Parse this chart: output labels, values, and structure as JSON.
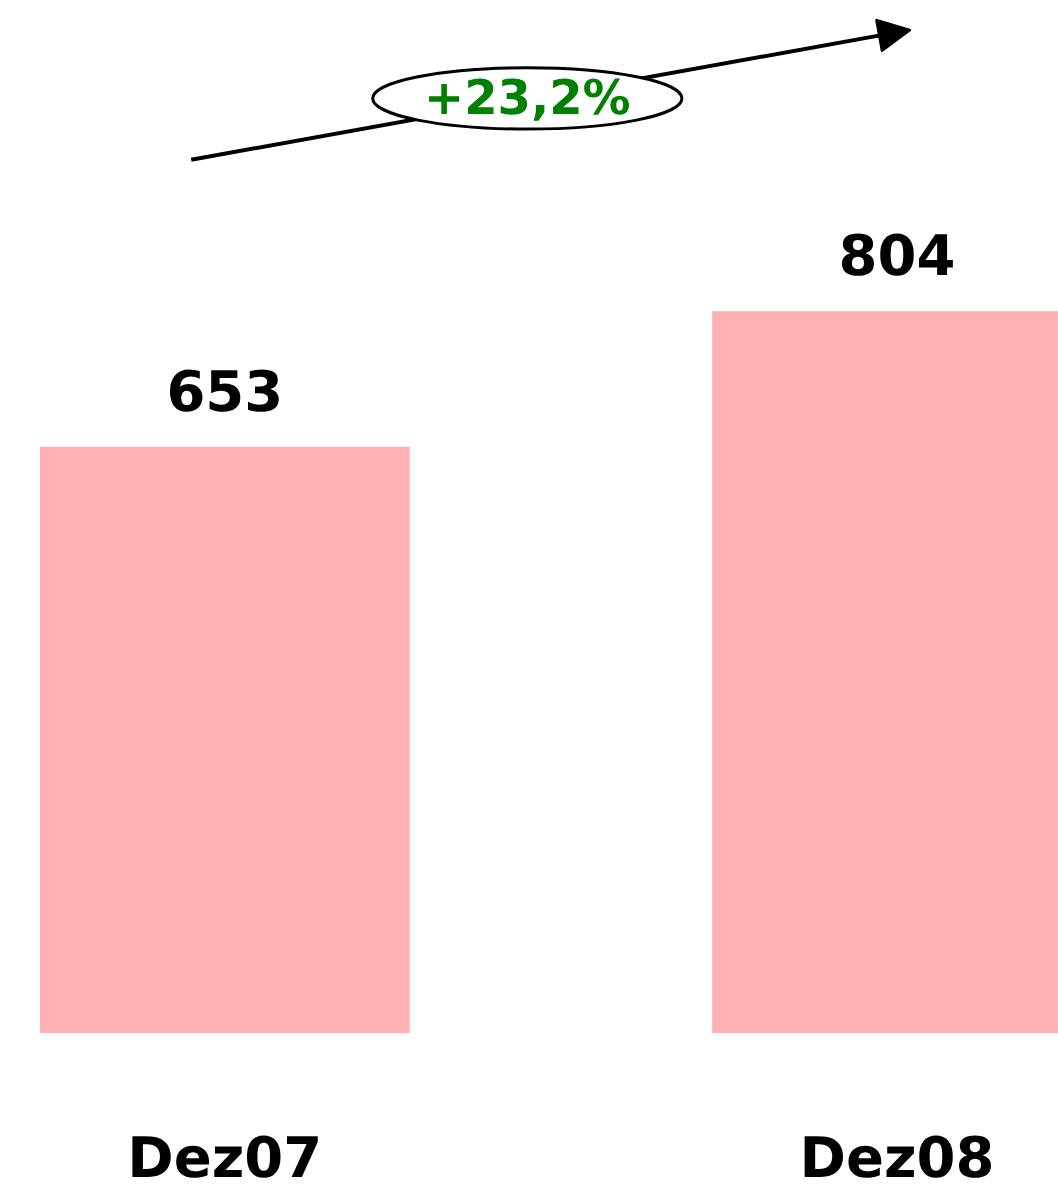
{
  "chart_data": {
    "type": "bar",
    "categories": [
      "Dez07",
      "Dez08"
    ],
    "values": [
      653,
      804
    ],
    "color": "#ffb0b0",
    "data_labels": true,
    "annotations": [
      "+23,2%"
    ]
  }
}
